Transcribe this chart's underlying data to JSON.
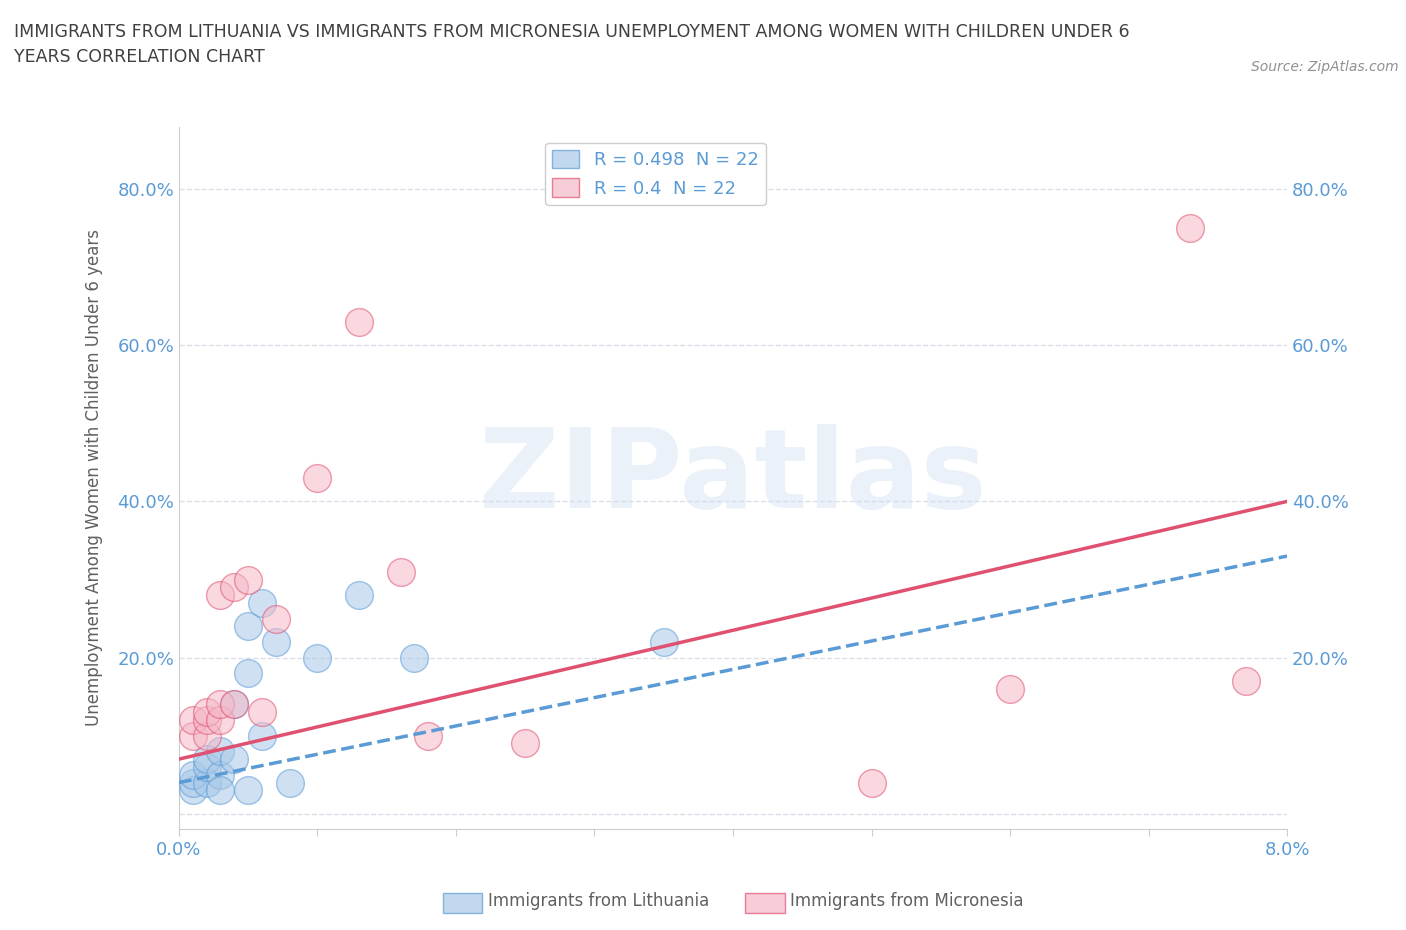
{
  "title": "IMMIGRANTS FROM LITHUANIA VS IMMIGRANTS FROM MICRONESIA UNEMPLOYMENT AMONG WOMEN WITH CHILDREN UNDER 6\nYEARS CORRELATION CHART",
  "source": "Source: ZipAtlas.com",
  "ylabel": "Unemployment Among Women with Children Under 6 years",
  "watermark": "ZIPatlas",
  "xlim": [
    0.0,
    0.08
  ],
  "ylim": [
    -0.02,
    0.88
  ],
  "xticks": [
    0.0,
    0.01,
    0.02,
    0.03,
    0.04,
    0.05,
    0.06,
    0.07,
    0.08
  ],
  "xticklabels_shown": {
    "0": "0.0%",
    "8": "8.0%"
  },
  "yticks": [
    0.0,
    0.2,
    0.4,
    0.6,
    0.8
  ],
  "yticklabels": [
    "",
    "20.0%",
    "40.0%",
    "60.0%",
    "80.0%"
  ],
  "lithuania_color": "#a8c8e8",
  "micronesia_color": "#f5b8c8",
  "lithuania_R": 0.498,
  "micronesia_R": 0.4,
  "N": 22,
  "lithuania_scatter_x": [
    0.001,
    0.001,
    0.001,
    0.002,
    0.002,
    0.002,
    0.003,
    0.003,
    0.003,
    0.004,
    0.004,
    0.005,
    0.005,
    0.005,
    0.006,
    0.006,
    0.007,
    0.008,
    0.01,
    0.013,
    0.017,
    0.035
  ],
  "lithuania_scatter_y": [
    0.03,
    0.04,
    0.05,
    0.04,
    0.06,
    0.07,
    0.05,
    0.08,
    0.03,
    0.07,
    0.14,
    0.03,
    0.18,
    0.24,
    0.1,
    0.27,
    0.22,
    0.04,
    0.2,
    0.28,
    0.2,
    0.22
  ],
  "micronesia_scatter_x": [
    0.001,
    0.001,
    0.002,
    0.002,
    0.002,
    0.003,
    0.003,
    0.003,
    0.004,
    0.004,
    0.005,
    0.006,
    0.007,
    0.01,
    0.013,
    0.016,
    0.018,
    0.025,
    0.05,
    0.06,
    0.073,
    0.077
  ],
  "micronesia_scatter_y": [
    0.1,
    0.12,
    0.1,
    0.12,
    0.13,
    0.12,
    0.14,
    0.28,
    0.14,
    0.29,
    0.3,
    0.13,
    0.25,
    0.43,
    0.63,
    0.31,
    0.1,
    0.09,
    0.04,
    0.16,
    0.75,
    0.17
  ],
  "trendline_lith_x0": 0.0,
  "trendline_lith_y0": 0.04,
  "trendline_lith_x1": 0.08,
  "trendline_lith_y1": 0.33,
  "trendline_micr_x0": 0.0,
  "trendline_micr_y0": 0.07,
  "trendline_micr_x1": 0.08,
  "trendline_micr_y1": 0.4,
  "background_color": "#ffffff",
  "grid_color": "#d8d8e8",
  "title_color": "#404040",
  "axis_label_color": "#606060",
  "tick_label_color": "#5b9bd5",
  "trendline_lithuania_color": "#5b9bd5",
  "trendline_micronesia_color": "#e05070"
}
